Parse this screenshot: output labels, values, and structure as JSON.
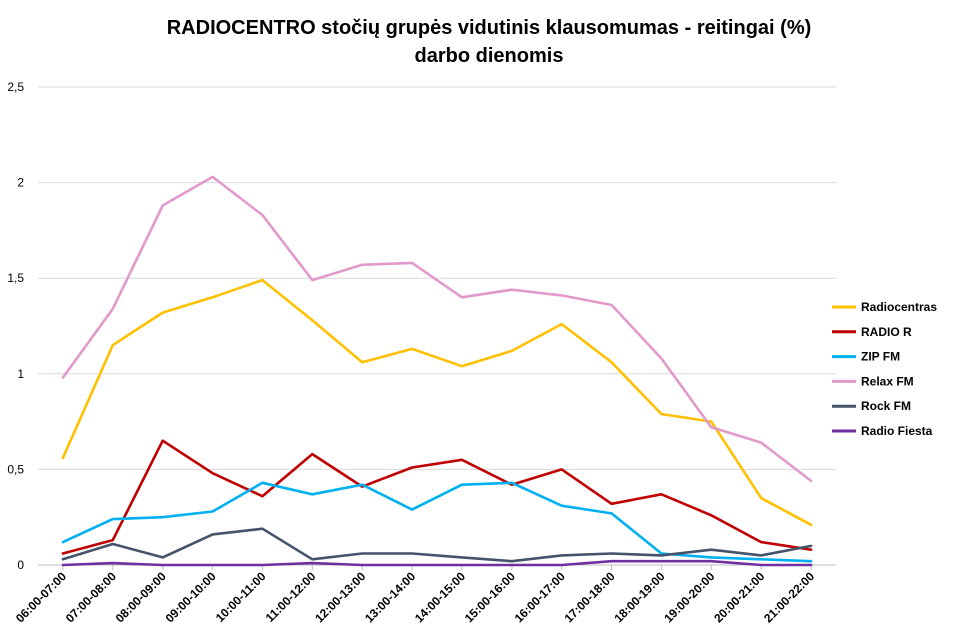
{
  "chart_data": {
    "type": "line",
    "title_lines": [
      "RADIOCENTRO stočių grupės vidutinis klausomumas - reitingai (%)",
      "darbo dienomis"
    ],
    "xlabel": "",
    "ylabel": "",
    "ylim": [
      0,
      2.5
    ],
    "yticks": [
      "0",
      "0,5",
      "1",
      "1,5",
      "2",
      "2,5"
    ],
    "ytick_values": [
      0,
      0.5,
      1,
      1.5,
      2,
      2.5
    ],
    "grid": true,
    "legend_position": "right",
    "categories": [
      "06:00-07:00",
      "07:00-08:00",
      "08:00-09:00",
      "09:00-10:00",
      "10:00-11:00",
      "11:00-12:00",
      "12:00-13:00",
      "13:00-14:00",
      "14:00-15:00",
      "15:00-16:00",
      "16:00-17:00",
      "17:00-18:00",
      "18:00-19:00",
      "19:00-20:00",
      "20:00-21:00",
      "21:00-22:00"
    ],
    "series": [
      {
        "name": "Radiocentras",
        "color": "#FFC000",
        "values": [
          0.56,
          1.15,
          1.32,
          1.4,
          1.49,
          1.28,
          1.06,
          1.13,
          1.04,
          1.12,
          1.26,
          1.06,
          0.79,
          0.75,
          0.35,
          0.21
        ]
      },
      {
        "name": "RADIO R",
        "color": "#C00000",
        "values": [
          0.06,
          0.13,
          0.65,
          0.48,
          0.36,
          0.58,
          0.41,
          0.51,
          0.55,
          0.42,
          0.5,
          0.32,
          0.37,
          0.26,
          0.12,
          0.08
        ]
      },
      {
        "name": "ZIP FM",
        "color": "#00B0F0",
        "values": [
          0.12,
          0.24,
          0.25,
          0.28,
          0.43,
          0.37,
          0.42,
          0.29,
          0.42,
          0.43,
          0.31,
          0.27,
          0.06,
          0.04,
          0.03,
          0.02
        ]
      },
      {
        "name": "Relax FM",
        "color": "#E29ACB",
        "values": [
          0.98,
          1.34,
          1.88,
          2.03,
          1.83,
          1.49,
          1.57,
          1.58,
          1.4,
          1.44,
          1.41,
          1.36,
          1.08,
          0.72,
          0.64,
          0.44
        ]
      },
      {
        "name": "Rock FM",
        "color": "#44546A",
        "values": [
          0.03,
          0.11,
          0.04,
          0.16,
          0.19,
          0.03,
          0.06,
          0.06,
          0.04,
          0.02,
          0.05,
          0.06,
          0.05,
          0.08,
          0.05,
          0.1
        ]
      },
      {
        "name": "Radio Fiesta",
        "color": "#7030A0",
        "values": [
          0.0,
          0.01,
          0.0,
          0.0,
          0.0,
          0.01,
          0.0,
          0.0,
          0.0,
          0.0,
          0.0,
          0.02,
          0.02,
          0.02,
          0.0,
          0.0
        ]
      }
    ]
  }
}
